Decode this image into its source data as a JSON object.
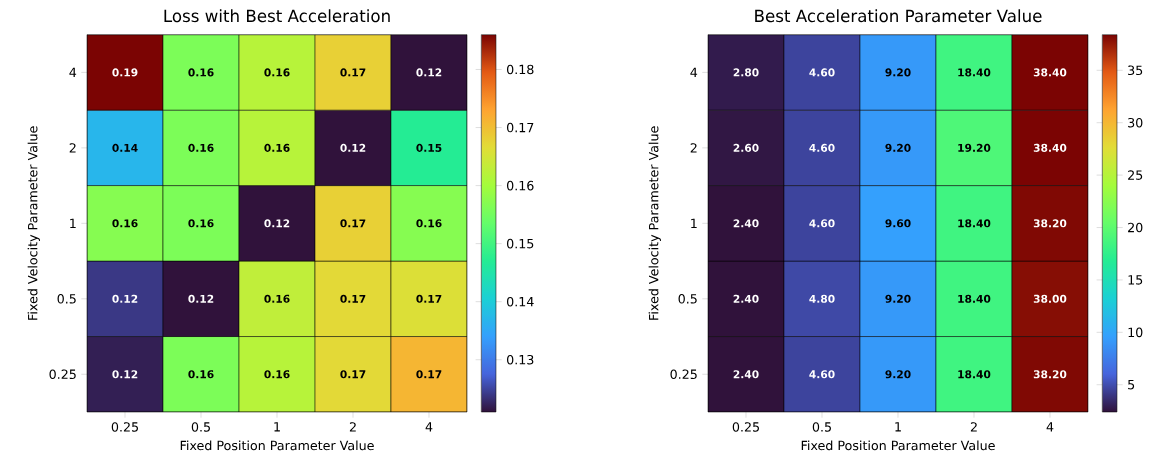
{
  "chart_data": [
    {
      "type": "heatmap",
      "title": "Loss with Best Acceleration",
      "xlabel": "Fixed Position Parameter Value",
      "ylabel": "Fixed Velocity Parameter Value",
      "categories": [
        "0.25",
        "0.5",
        "1",
        "2",
        "4"
      ],
      "y_categories": [
        "4",
        "2",
        "1",
        "0.5",
        "0.25"
      ],
      "cells": [
        [
          0.186,
          0.156,
          0.162,
          0.168,
          0.121
        ],
        [
          0.137,
          0.156,
          0.162,
          0.121,
          0.147
        ],
        [
          0.157,
          0.156,
          0.121,
          0.168,
          0.157
        ],
        [
          0.124,
          0.121,
          0.163,
          0.167,
          0.166
        ],
        [
          0.122,
          0.156,
          0.162,
          0.167,
          0.171
        ]
      ],
      "cell_labels": [
        [
          "0.19",
          "0.16",
          "0.16",
          "0.17",
          "0.12"
        ],
        [
          "0.14",
          "0.16",
          "0.16",
          "0.12",
          "0.15"
        ],
        [
          "0.16",
          "0.16",
          "0.12",
          "0.17",
          "0.16"
        ],
        [
          "0.12",
          "0.12",
          "0.16",
          "0.17",
          "0.17"
        ],
        [
          "0.12",
          "0.16",
          "0.16",
          "0.17",
          "0.17"
        ]
      ],
      "clim": [
        0.121,
        0.186
      ],
      "cticks": [
        0.13,
        0.14,
        0.15,
        0.16,
        0.17,
        0.18
      ]
    },
    {
      "type": "heatmap",
      "title": "Best Acceleration Parameter Value",
      "xlabel": "Fixed Position Parameter Value",
      "ylabel": "Fixed Velocity Parameter Value",
      "categories": [
        "0.25",
        "0.5",
        "1",
        "2",
        "4"
      ],
      "y_categories": [
        "4",
        "2",
        "1",
        "0.5",
        "0.25"
      ],
      "cells": [
        [
          2.8,
          4.6,
          9.2,
          18.4,
          38.4
        ],
        [
          2.6,
          4.6,
          9.2,
          19.2,
          38.4
        ],
        [
          2.4,
          4.6,
          9.6,
          18.4,
          38.2
        ],
        [
          2.4,
          4.8,
          9.2,
          18.4,
          38.0
        ],
        [
          2.4,
          4.6,
          9.2,
          18.4,
          38.2
        ]
      ],
      "cell_labels": [
        [
          "2.80",
          "4.60",
          "9.20",
          "18.40",
          "38.40"
        ],
        [
          "2.60",
          "4.60",
          "9.20",
          "19.20",
          "38.40"
        ],
        [
          "2.40",
          "4.60",
          "9.60",
          "18.40",
          "38.20"
        ],
        [
          "2.40",
          "4.80",
          "9.20",
          "18.40",
          "38.00"
        ],
        [
          "2.40",
          "4.60",
          "9.20",
          "18.40",
          "38.20"
        ]
      ],
      "clim": [
        2.4,
        38.4
      ],
      "cticks": [
        5,
        10,
        15,
        20,
        25,
        30,
        35
      ]
    }
  ]
}
